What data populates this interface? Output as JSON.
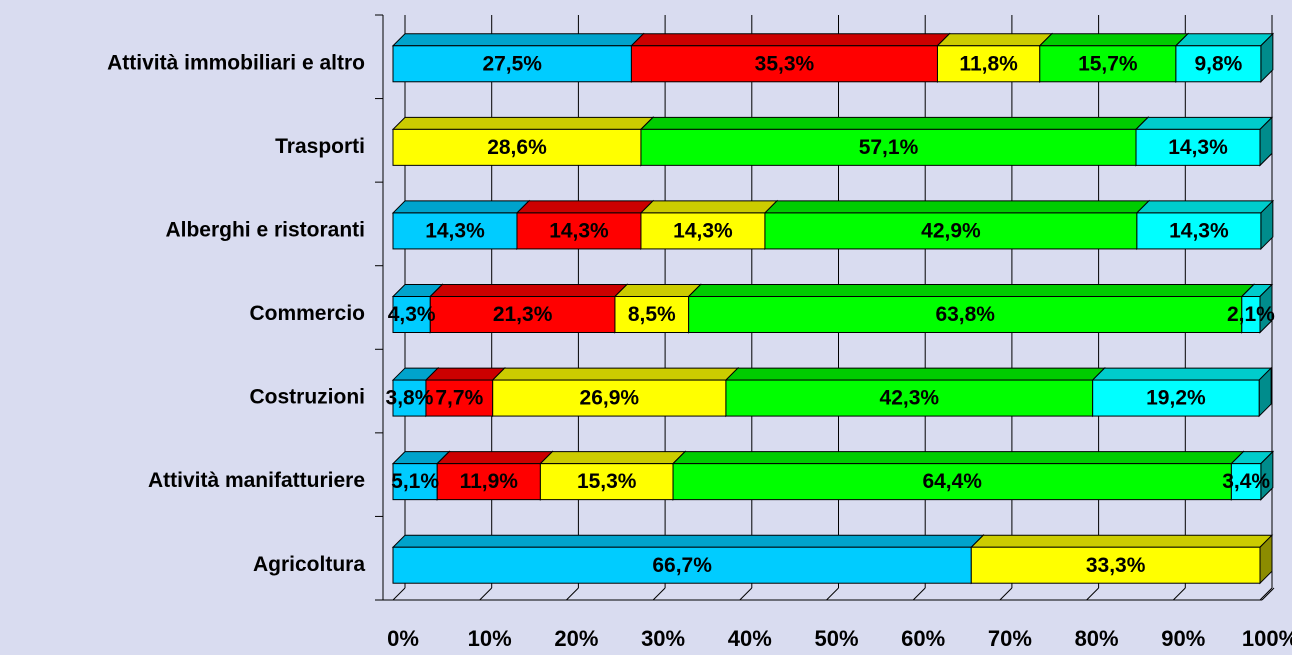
{
  "chart_data": {
    "type": "bar-stacked-horizontal",
    "categories": [
      "Attività immobiliari e altro",
      "Trasporti",
      "Alberghi e ristoranti",
      "Commercio",
      "Costruzioni",
      "Attività manifatturiere",
      "Agricoltura"
    ],
    "series": [
      {
        "color": "#00ccff",
        "values": [
          27.5,
          null,
          14.3,
          4.3,
          3.8,
          5.1,
          66.7
        ],
        "value_labels": [
          "27,5%",
          null,
          "14,3%",
          "4,3%",
          "3,8%",
          "5,1%",
          "66,7%"
        ]
      },
      {
        "color": "#ff0000",
        "values": [
          35.3,
          null,
          14.3,
          21.3,
          7.7,
          11.9,
          null
        ],
        "value_labels": [
          "35,3%",
          null,
          "14,3%",
          "21,3%",
          "7,7%",
          "11,9%",
          null
        ]
      },
      {
        "color": "#ffff00",
        "values": [
          11.8,
          28.6,
          14.3,
          8.5,
          26.9,
          15.3,
          33.3
        ],
        "value_labels": [
          "11,8%",
          "28,6%",
          "14,3%",
          "8,5%",
          "26,9%",
          "15,3%",
          "33,3%"
        ]
      },
      {
        "color": "#00ff00",
        "values": [
          15.7,
          57.1,
          42.9,
          63.8,
          42.3,
          64.4,
          null
        ],
        "value_labels": [
          "15,7%",
          "57,1%",
          "42,9%",
          "63,8%",
          "42,3%",
          "64,4%",
          null
        ]
      },
      {
        "color": "#00ffff",
        "values": [
          9.8,
          14.3,
          14.3,
          2.1,
          19.2,
          3.4,
          null
        ],
        "value_labels": [
          "9,8%",
          "14,3%",
          "14,3%",
          "2,1%",
          "19,2%",
          "3,4%",
          null
        ]
      }
    ],
    "xlim": [
      0,
      100
    ],
    "xticks": [
      {
        "value": 0,
        "label": "0%"
      },
      {
        "value": 10,
        "label": "10%"
      },
      {
        "value": 20,
        "label": "20%"
      },
      {
        "value": 30,
        "label": "30%"
      },
      {
        "value": 40,
        "label": "40%"
      },
      {
        "value": 50,
        "label": "50%"
      },
      {
        "value": 60,
        "label": "60%"
      },
      {
        "value": 70,
        "label": "70%"
      },
      {
        "value": 80,
        "label": "80%"
      },
      {
        "value": 90,
        "label": "90%"
      },
      {
        "value": 100,
        "label": "100%"
      }
    ],
    "grid": true
  }
}
